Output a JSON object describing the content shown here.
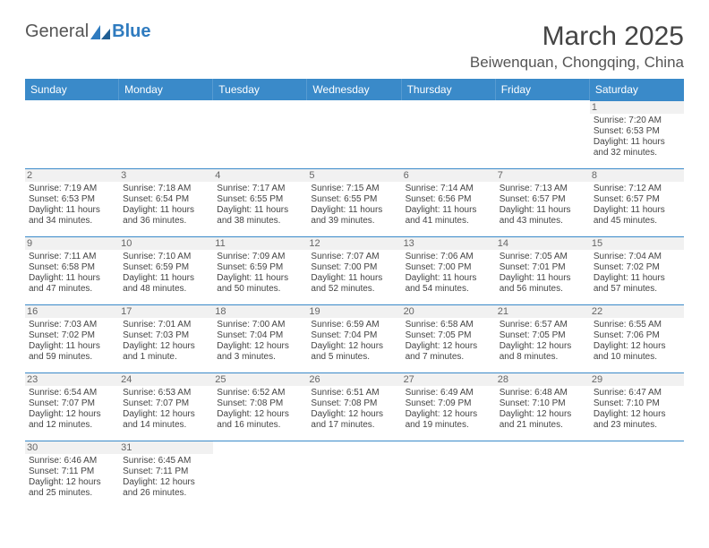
{
  "logo": {
    "text1": "General",
    "text2": "Blue"
  },
  "title": {
    "month": "March 2025",
    "location": "Beiwenquan, Chongqing, China"
  },
  "colors": {
    "header_bg": "#3a8ac9",
    "border": "#3a8ac9",
    "text": "#444444",
    "muted": "#666666",
    "daynum_bg": "#f1f1f1"
  },
  "layout": {
    "cols": 7,
    "rows": 6,
    "font_size_cell": 10,
    "font_size_header": 12
  },
  "daynames": [
    "Sunday",
    "Monday",
    "Tuesday",
    "Wednesday",
    "Thursday",
    "Friday",
    "Saturday"
  ],
  "cells": [
    {
      "day": "",
      "lines": []
    },
    {
      "day": "",
      "lines": []
    },
    {
      "day": "",
      "lines": []
    },
    {
      "day": "",
      "lines": []
    },
    {
      "day": "",
      "lines": []
    },
    {
      "day": "",
      "lines": []
    },
    {
      "day": "1",
      "lines": [
        "Sunrise: 7:20 AM",
        "Sunset: 6:53 PM",
        "Daylight: 11 hours and 32 minutes."
      ]
    },
    {
      "day": "2",
      "lines": [
        "Sunrise: 7:19 AM",
        "Sunset: 6:53 PM",
        "Daylight: 11 hours and 34 minutes."
      ]
    },
    {
      "day": "3",
      "lines": [
        "Sunrise: 7:18 AM",
        "Sunset: 6:54 PM",
        "Daylight: 11 hours and 36 minutes."
      ]
    },
    {
      "day": "4",
      "lines": [
        "Sunrise: 7:17 AM",
        "Sunset: 6:55 PM",
        "Daylight: 11 hours and 38 minutes."
      ]
    },
    {
      "day": "5",
      "lines": [
        "Sunrise: 7:15 AM",
        "Sunset: 6:55 PM",
        "Daylight: 11 hours and 39 minutes."
      ]
    },
    {
      "day": "6",
      "lines": [
        "Sunrise: 7:14 AM",
        "Sunset: 6:56 PM",
        "Daylight: 11 hours and 41 minutes."
      ]
    },
    {
      "day": "7",
      "lines": [
        "Sunrise: 7:13 AM",
        "Sunset: 6:57 PM",
        "Daylight: 11 hours and 43 minutes."
      ]
    },
    {
      "day": "8",
      "lines": [
        "Sunrise: 7:12 AM",
        "Sunset: 6:57 PM",
        "Daylight: 11 hours and 45 minutes."
      ]
    },
    {
      "day": "9",
      "lines": [
        "Sunrise: 7:11 AM",
        "Sunset: 6:58 PM",
        "Daylight: 11 hours and 47 minutes."
      ]
    },
    {
      "day": "10",
      "lines": [
        "Sunrise: 7:10 AM",
        "Sunset: 6:59 PM",
        "Daylight: 11 hours and 48 minutes."
      ]
    },
    {
      "day": "11",
      "lines": [
        "Sunrise: 7:09 AM",
        "Sunset: 6:59 PM",
        "Daylight: 11 hours and 50 minutes."
      ]
    },
    {
      "day": "12",
      "lines": [
        "Sunrise: 7:07 AM",
        "Sunset: 7:00 PM",
        "Daylight: 11 hours and 52 minutes."
      ]
    },
    {
      "day": "13",
      "lines": [
        "Sunrise: 7:06 AM",
        "Sunset: 7:00 PM",
        "Daylight: 11 hours and 54 minutes."
      ]
    },
    {
      "day": "14",
      "lines": [
        "Sunrise: 7:05 AM",
        "Sunset: 7:01 PM",
        "Daylight: 11 hours and 56 minutes."
      ]
    },
    {
      "day": "15",
      "lines": [
        "Sunrise: 7:04 AM",
        "Sunset: 7:02 PM",
        "Daylight: 11 hours and 57 minutes."
      ]
    },
    {
      "day": "16",
      "lines": [
        "Sunrise: 7:03 AM",
        "Sunset: 7:02 PM",
        "Daylight: 11 hours and 59 minutes."
      ]
    },
    {
      "day": "17",
      "lines": [
        "Sunrise: 7:01 AM",
        "Sunset: 7:03 PM",
        "Daylight: 12 hours and 1 minute."
      ]
    },
    {
      "day": "18",
      "lines": [
        "Sunrise: 7:00 AM",
        "Sunset: 7:04 PM",
        "Daylight: 12 hours and 3 minutes."
      ]
    },
    {
      "day": "19",
      "lines": [
        "Sunrise: 6:59 AM",
        "Sunset: 7:04 PM",
        "Daylight: 12 hours and 5 minutes."
      ]
    },
    {
      "day": "20",
      "lines": [
        "Sunrise: 6:58 AM",
        "Sunset: 7:05 PM",
        "Daylight: 12 hours and 7 minutes."
      ]
    },
    {
      "day": "21",
      "lines": [
        "Sunrise: 6:57 AM",
        "Sunset: 7:05 PM",
        "Daylight: 12 hours and 8 minutes."
      ]
    },
    {
      "day": "22",
      "lines": [
        "Sunrise: 6:55 AM",
        "Sunset: 7:06 PM",
        "Daylight: 12 hours and 10 minutes."
      ]
    },
    {
      "day": "23",
      "lines": [
        "Sunrise: 6:54 AM",
        "Sunset: 7:07 PM",
        "Daylight: 12 hours and 12 minutes."
      ]
    },
    {
      "day": "24",
      "lines": [
        "Sunrise: 6:53 AM",
        "Sunset: 7:07 PM",
        "Daylight: 12 hours and 14 minutes."
      ]
    },
    {
      "day": "25",
      "lines": [
        "Sunrise: 6:52 AM",
        "Sunset: 7:08 PM",
        "Daylight: 12 hours and 16 minutes."
      ]
    },
    {
      "day": "26",
      "lines": [
        "Sunrise: 6:51 AM",
        "Sunset: 7:08 PM",
        "Daylight: 12 hours and 17 minutes."
      ]
    },
    {
      "day": "27",
      "lines": [
        "Sunrise: 6:49 AM",
        "Sunset: 7:09 PM",
        "Daylight: 12 hours and 19 minutes."
      ]
    },
    {
      "day": "28",
      "lines": [
        "Sunrise: 6:48 AM",
        "Sunset: 7:10 PM",
        "Daylight: 12 hours and 21 minutes."
      ]
    },
    {
      "day": "29",
      "lines": [
        "Sunrise: 6:47 AM",
        "Sunset: 7:10 PM",
        "Daylight: 12 hours and 23 minutes."
      ]
    },
    {
      "day": "30",
      "lines": [
        "Sunrise: 6:46 AM",
        "Sunset: 7:11 PM",
        "Daylight: 12 hours and 25 minutes."
      ]
    },
    {
      "day": "31",
      "lines": [
        "Sunrise: 6:45 AM",
        "Sunset: 7:11 PM",
        "Daylight: 12 hours and 26 minutes."
      ]
    },
    {
      "day": "",
      "lines": []
    },
    {
      "day": "",
      "lines": []
    },
    {
      "day": "",
      "lines": []
    },
    {
      "day": "",
      "lines": []
    },
    {
      "day": "",
      "lines": []
    }
  ]
}
